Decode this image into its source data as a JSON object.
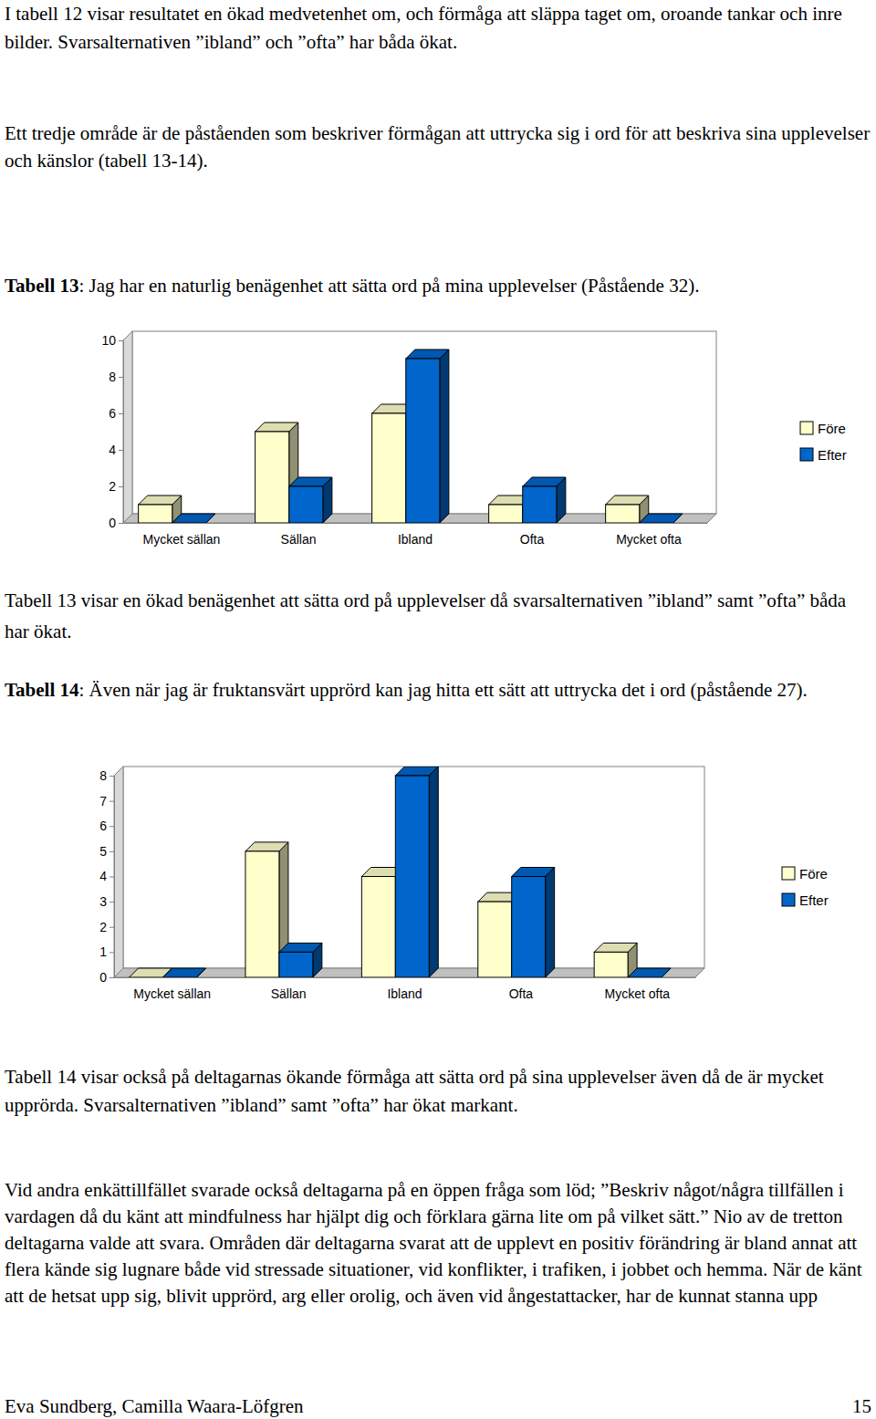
{
  "page": {
    "intro": [
      "I tabell 12 visar resultatet en ökad medvetenhet om, och förmåga att släppa taget om, oroande tankar och inre bilder. Svarsalternativen ”ibland” och ”ofta” har båda ökat.",
      "Ett tredje område är de påståenden som beskriver förmågan att uttrycka sig i ord för att beskriva sina upplevelser och känslor (tabell 13-14)."
    ],
    "sections": [
      {
        "caption_label": "Tabell 13",
        "caption_text": ": Jag har en naturlig benägenhet att sätta ord på mina upplevelser (Påstående 32).",
        "comment": "Tabell 13 visar en ökad benägenhet att sätta ord på upplevelser då svarsalternativen ”ibland” samt ”ofta” båda har ökat."
      },
      {
        "caption_label": "Tabell 14",
        "caption_text": ": Även när jag är fruktansvärt upprörd kan jag hitta ett sätt att uttrycka det i ord (påstående 27).",
        "comment": "Tabell 14 visar också på deltagarnas ökande förmåga att sätta ord på sina upplevelser även då de är mycket upprörda. Svarsalternativen ”ibland” samt ”ofta” har ökat markant."
      }
    ],
    "closing": "Vid andra enkättillfället svarade också deltagarna på en öppen fråga som löd; ”Beskriv något/några tillfällen i vardagen då du känt att mindfulness har hjälpt dig och förklara gärna lite om på vilket sätt.” Nio av de tretton deltagarna valde att svara. Områden där deltagarna svarat att de upplevt en positiv förändring är bland annat att flera kände sig lugnare både vid stressade situationer, vid konflikter, i trafiken, i jobbet och hemma. När de känt att de hetsat upp sig, blivit upprörd, arg eller orolig, och även vid ångestattacker, har de kunnat stanna upp",
    "footer": {
      "authors": "Eva Sundberg, Camilla Waara-Löfgren",
      "page_number": "15"
    }
  },
  "chart_data": [
    {
      "type": "bar",
      "categories": [
        "Mycket sällan",
        "Sällan",
        "Ibland",
        "Ofta",
        "Mycket ofta"
      ],
      "series": [
        {
          "name": "Före",
          "color": "#ffffcc",
          "values": [
            1,
            5,
            6,
            1,
            1
          ]
        },
        {
          "name": "Efter",
          "color": "#0066cc",
          "values": [
            0,
            2,
            9,
            2,
            0
          ]
        }
      ],
      "ylim": [
        0,
        10
      ],
      "yticks": [
        0,
        2,
        4,
        6,
        8,
        10
      ],
      "grid": false,
      "legend": "right"
    },
    {
      "type": "bar",
      "categories": [
        "Mycket sällan",
        "Sällan",
        "Ibland",
        "Ofta",
        "Mycket ofta"
      ],
      "series": [
        {
          "name": "Före",
          "color": "#ffffcc",
          "values": [
            0,
            5,
            4,
            3,
            1
          ]
        },
        {
          "name": "Efter",
          "color": "#0066cc",
          "values": [
            0,
            1,
            8,
            4,
            0
          ]
        }
      ],
      "ylim": [
        0,
        8
      ],
      "yticks": [
        0,
        1,
        2,
        3,
        4,
        5,
        6,
        7,
        8
      ],
      "grid": false,
      "legend": "right"
    }
  ]
}
